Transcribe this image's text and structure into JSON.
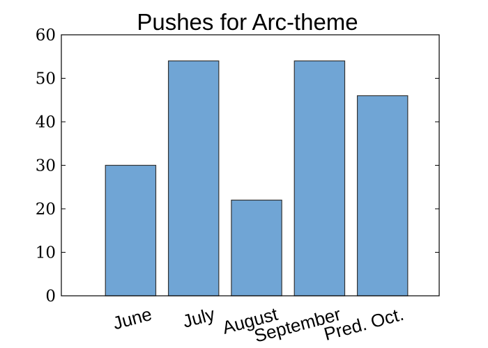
{
  "chart_data": {
    "type": "bar",
    "title": "Pushes for Arc-theme",
    "xlabel": "",
    "ylabel": "",
    "categories": [
      "June",
      "July",
      "August",
      "September",
      "Pred. Oct."
    ],
    "values": [
      30,
      54,
      22,
      54,
      46
    ],
    "ylim": [
      0,
      60
    ],
    "yticks": [
      0,
      10,
      20,
      30,
      40,
      50,
      60
    ],
    "bar_color": "#70a5d5",
    "edge_color": "#333333",
    "grid": false,
    "legend": "none"
  }
}
